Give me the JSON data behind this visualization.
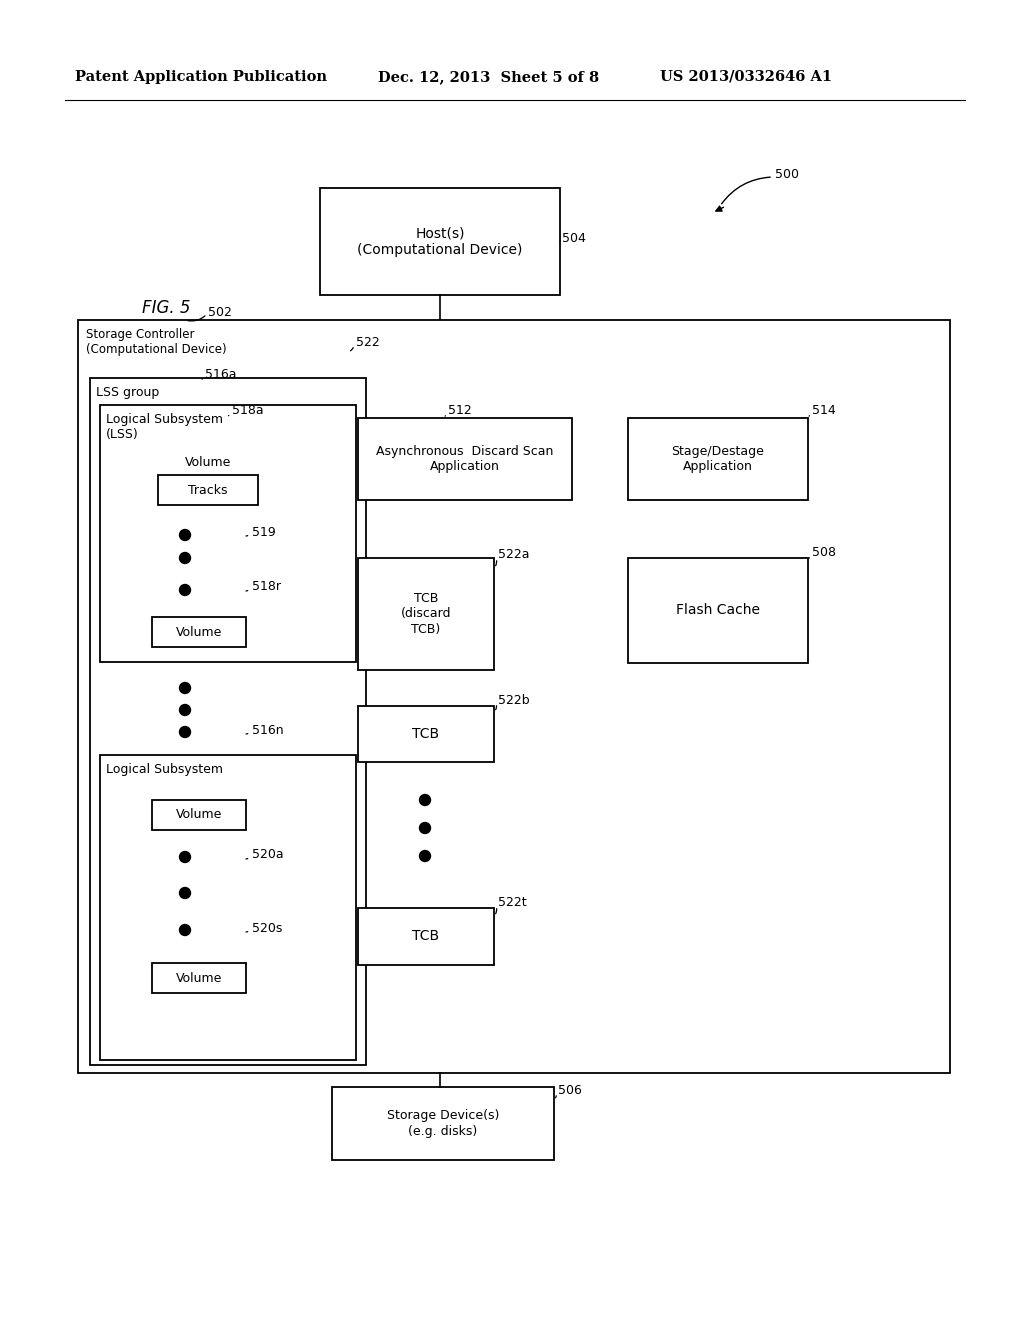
{
  "bg_color": "#ffffff",
  "header_left": "Patent Application Publication",
  "header_mid": "Dec. 12, 2013  Sheet 5 of 8",
  "header_right": "US 2013/0332646 A1",
  "fig_label": "FIG. 5",
  "host_text": "Host(s)\n(Computational Device)",
  "storage_ctrl_text": "Storage Controller\n(Computational Device)",
  "lss_group_text": "LSS group",
  "logical_sub_text": "Logical Subsystem\n(LSS)",
  "logical_sub2_text": "Logical Subsystem",
  "async_text": "Asynchronous  Discard Scan\nApplication",
  "stage_text": "Stage/Destage\nApplication",
  "flash_cache_text": "Flash Cache",
  "tcb_discard_text": "TCB\n(discard\nTCB)",
  "tcb_text": "TCB",
  "volume_tracks_label": "Volume",
  "tracks_label": "Tracks",
  "volume_text": "Volume",
  "storage_dev_text": "Storage Device(s)\n(e.g. disks)"
}
